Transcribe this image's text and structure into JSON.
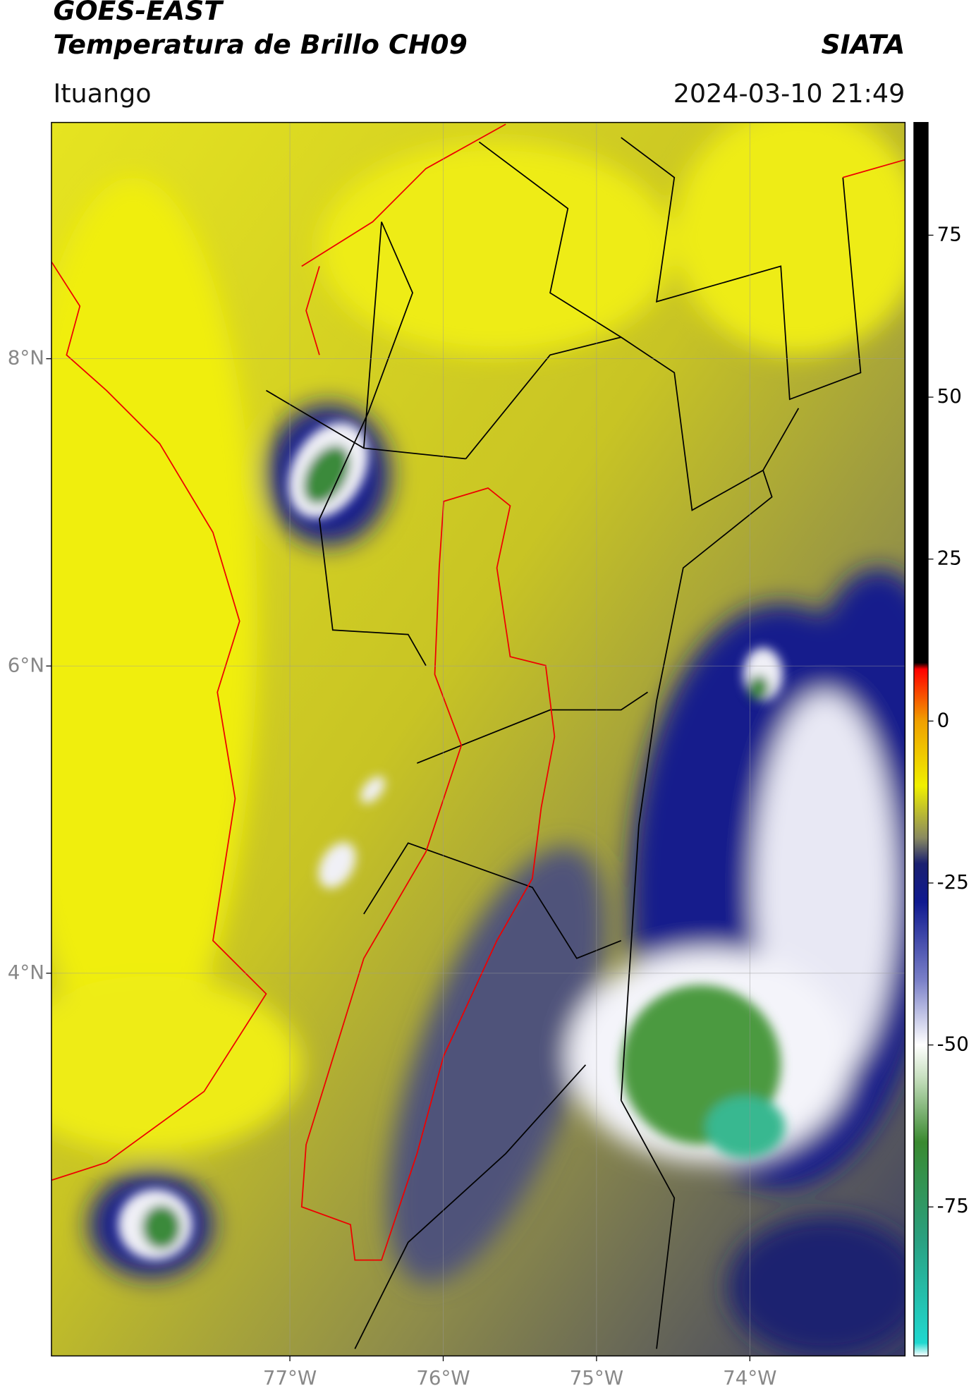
{
  "header": {
    "title": "GOES-EAST",
    "subtitle": "Temperatura de Brillo CH09",
    "brand": "SIATA",
    "location": "Ituango",
    "datetime": "2024-03-10 21:49"
  },
  "map": {
    "xlim": [
      -78.555,
      -72.988
    ],
    "ylim": [
      1.509,
      9.538
    ],
    "xticks": [
      {
        "value": -77,
        "label": "77°W"
      },
      {
        "value": -76,
        "label": "76°W"
      },
      {
        "value": -75,
        "label": "75°W"
      },
      {
        "value": -74,
        "label": "74°W"
      }
    ],
    "yticks": [
      {
        "value": 8,
        "label": "8°N"
      },
      {
        "value": 6,
        "label": "6°N"
      },
      {
        "value": 4,
        "label": "4°N"
      }
    ],
    "grid": true
  },
  "colorbar": {
    "lim": [
      -98,
      92.4
    ],
    "ticks": [
      75,
      50,
      25,
      0,
      -25,
      -50,
      -75
    ],
    "stops": [
      [
        -98,
        "#ffffff"
      ],
      [
        -96,
        "#20d8d0"
      ],
      [
        -80,
        "#2aa080"
      ],
      [
        -65,
        "#3a8a30"
      ],
      [
        -55,
        "#c8e0c0"
      ],
      [
        -50,
        "#ffffff"
      ],
      [
        -40,
        "#7a80c8"
      ],
      [
        -28,
        "#101a90"
      ],
      [
        -22,
        "#1a2070"
      ],
      [
        -18,
        "#8a8a60"
      ],
      [
        -10,
        "#f0f000"
      ],
      [
        0,
        "#f0a000"
      ],
      [
        8,
        "#ff0000"
      ],
      [
        9,
        "#000000"
      ],
      [
        92.4,
        "#000000"
      ]
    ]
  }
}
